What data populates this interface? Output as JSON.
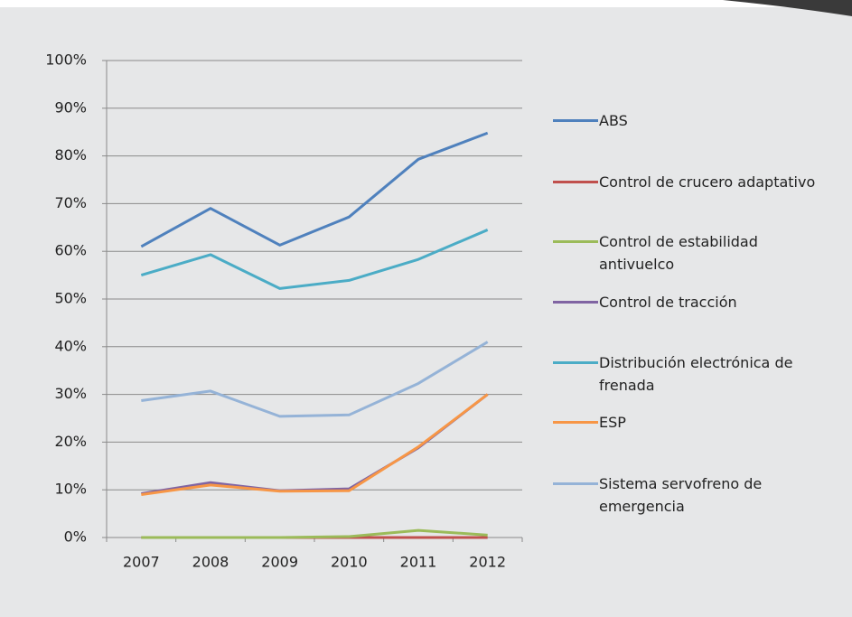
{
  "chart_data": {
    "type": "line",
    "categories": [
      "2007",
      "2008",
      "2009",
      "2010",
      "2011",
      "2012"
    ],
    "series": [
      {
        "name": "ABS",
        "color": "#4f81bd",
        "values": [
          61,
          69,
          61.3,
          67.2,
          79.3,
          84.8
        ]
      },
      {
        "name": "Control de crucero adaptativo",
        "color": "#c0504d",
        "values": [
          0,
          0,
          0,
          0,
          0,
          0
        ]
      },
      {
        "name": "Control de estabilidad antivuelco",
        "color": "#9bbb59",
        "values": [
          0,
          0,
          0,
          0.2,
          1.5,
          0.5
        ]
      },
      {
        "name": "Control de tracción",
        "color": "#8064a2",
        "values": [
          9.2,
          11.5,
          9.8,
          10.2,
          18.8,
          30
        ]
      },
      {
        "name": "Distribución electrónica de frenada",
        "color": "#4bacc6",
        "values": [
          55,
          59.3,
          52.2,
          53.9,
          58.3,
          64.5
        ]
      },
      {
        "name": "ESP",
        "color": "#f79646",
        "values": [
          9,
          11,
          9.7,
          9.8,
          19,
          30
        ]
      },
      {
        "name": "Sistema servofreno de emergencia",
        "color": "#95b3d7",
        "values": [
          28.7,
          30.7,
          25.4,
          25.7,
          32.3,
          41
        ]
      }
    ],
    "ylim": [
      0,
      100
    ],
    "yticks": [
      {
        "value": 0,
        "label": "0%"
      },
      {
        "value": 10,
        "label": "10%"
      },
      {
        "value": 20,
        "label": "20%"
      },
      {
        "value": 30,
        "label": "30%"
      },
      {
        "value": 40,
        "label": "40%"
      },
      {
        "value": 50,
        "label": "50%"
      },
      {
        "value": 60,
        "label": "60%"
      },
      {
        "value": 70,
        "label": "70%"
      },
      {
        "value": 80,
        "label": "80%"
      },
      {
        "value": 90,
        "label": "90%"
      },
      {
        "value": 100,
        "label": "100%"
      }
    ],
    "grid": true,
    "legend": "right"
  }
}
